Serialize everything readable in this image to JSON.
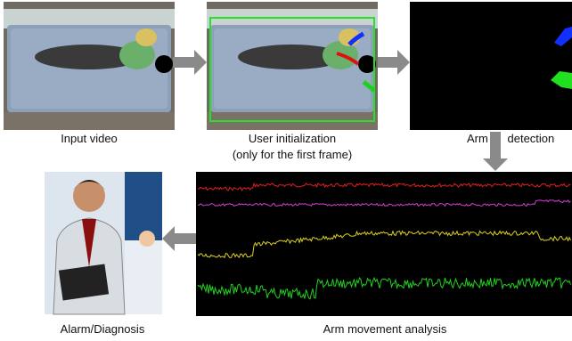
{
  "nodes": [
    {
      "label": "Input video"
    },
    {
      "label_lines": [
        "User initialization",
        "(only for the first frame)"
      ]
    },
    {
      "label": "Arm      detection"
    },
    {
      "label": "Arm movement analysis"
    },
    {
      "label": "Alarm/Diagnosis"
    }
  ]
}
